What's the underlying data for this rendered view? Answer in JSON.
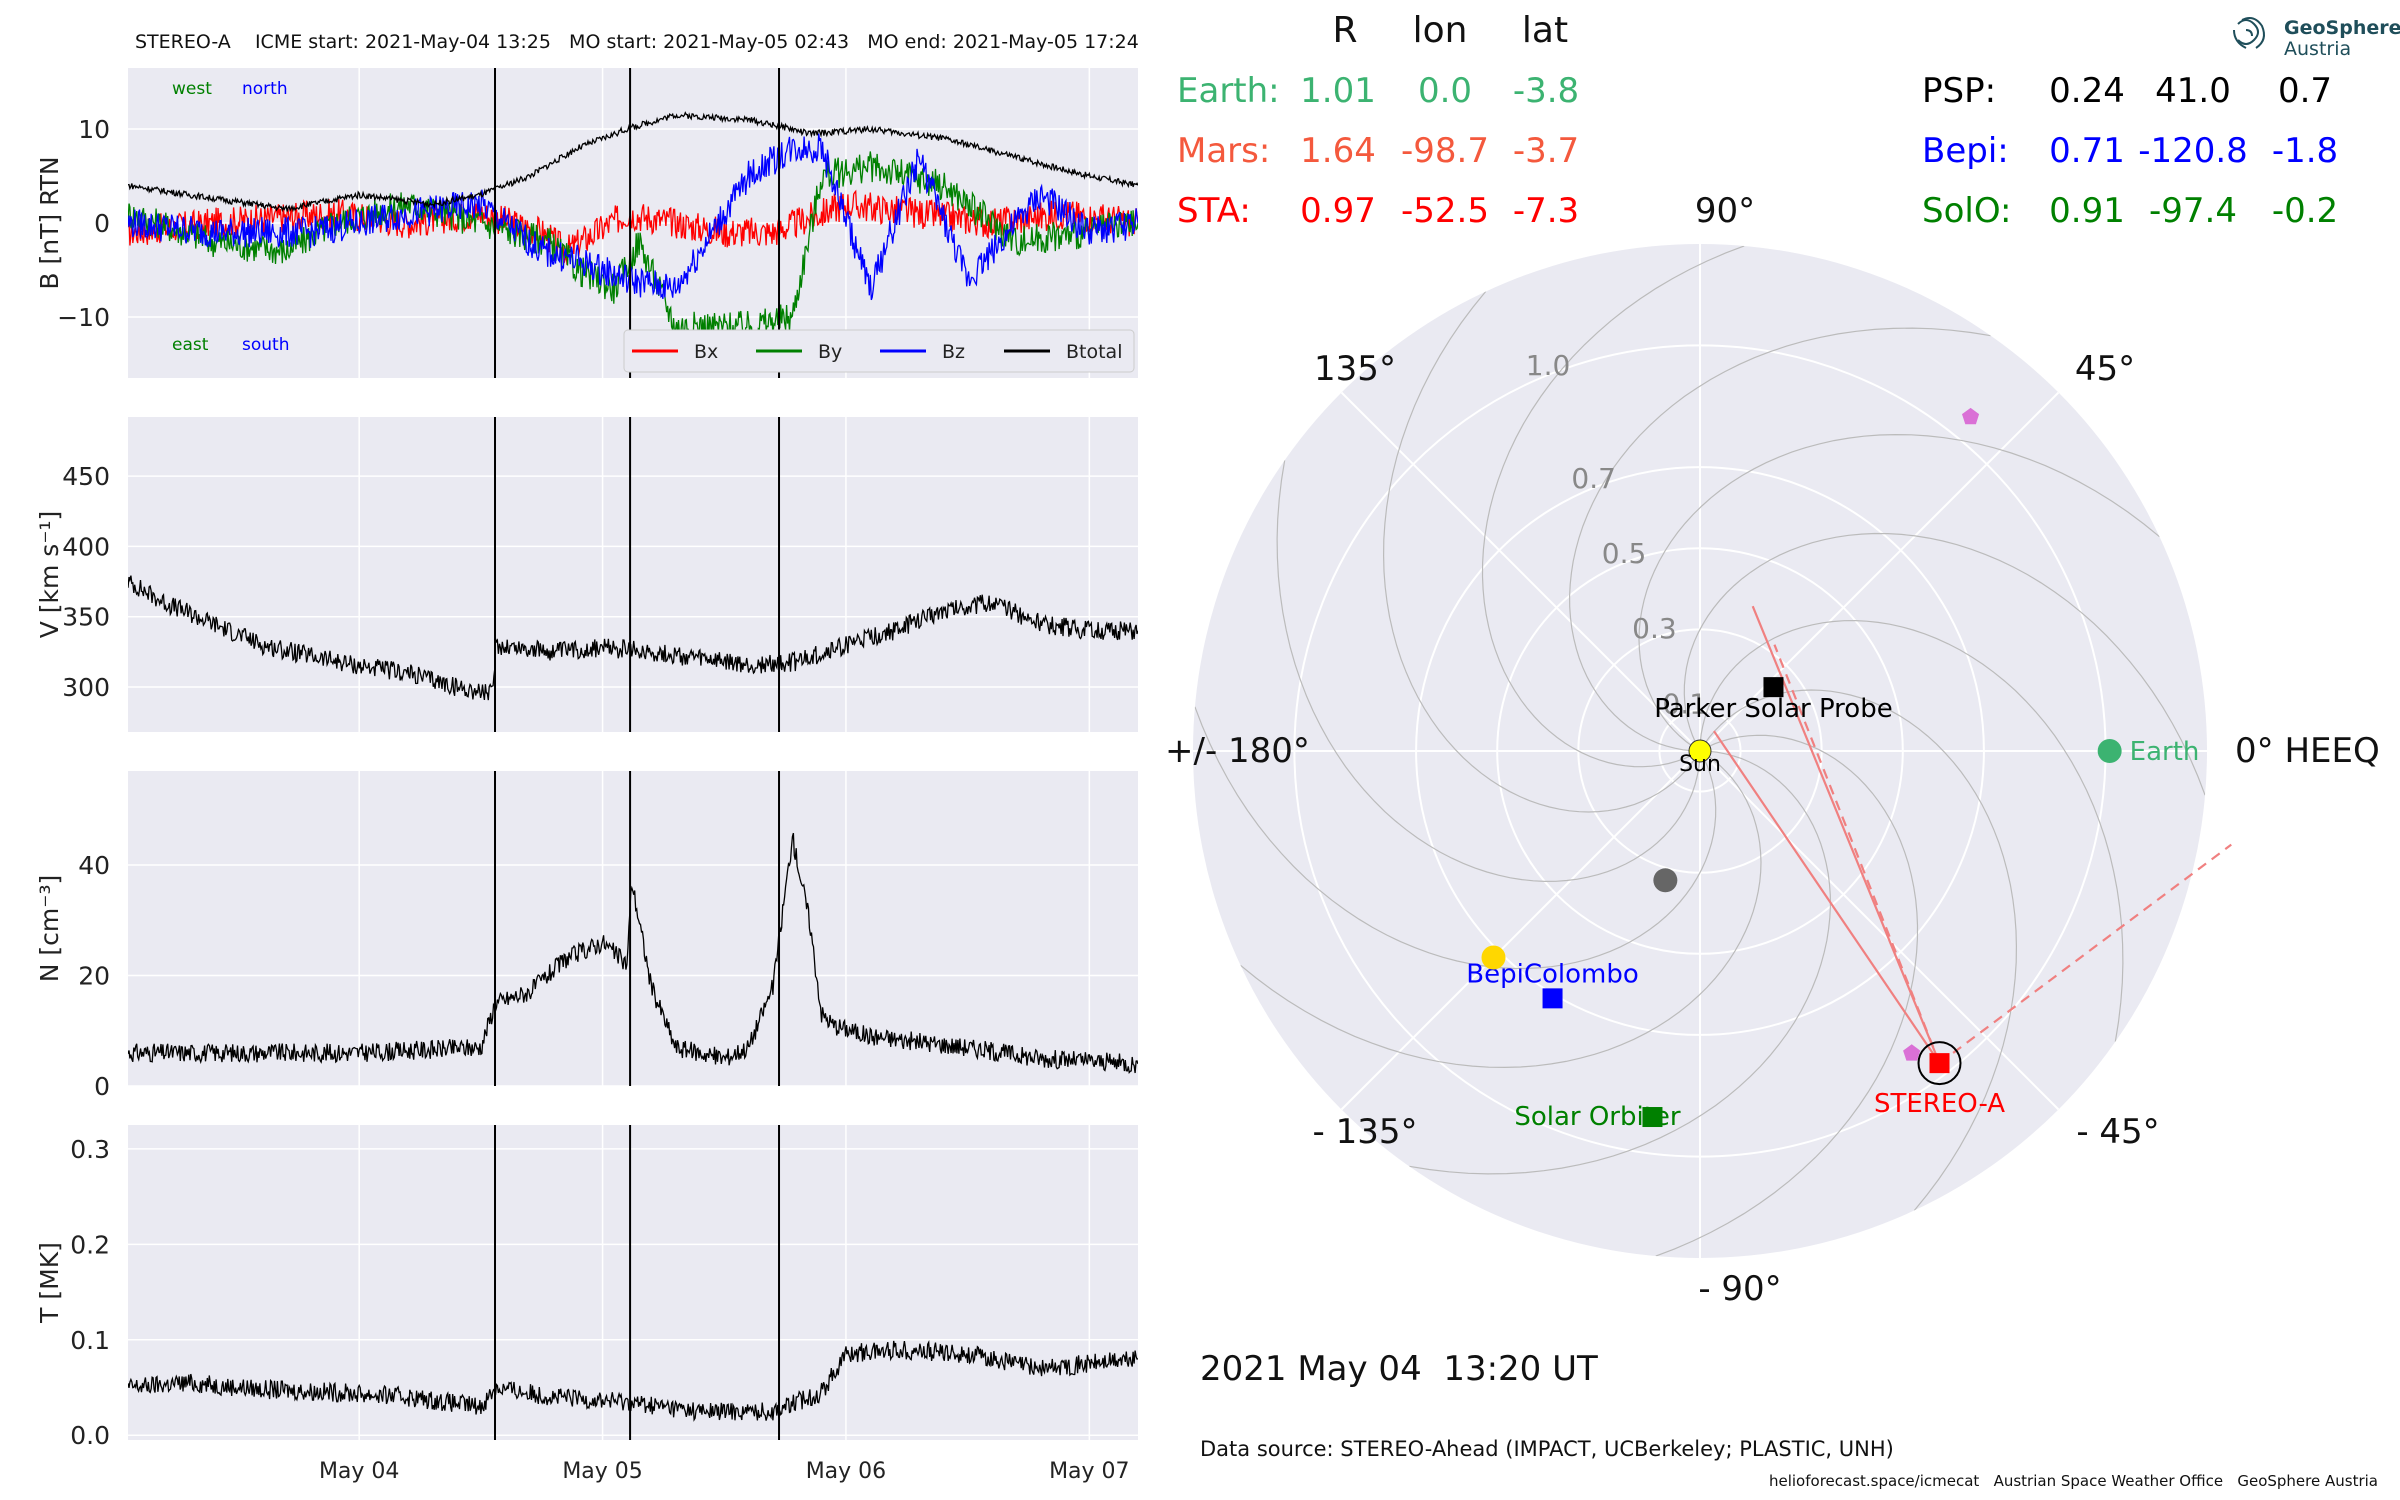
{
  "header": {
    "title": "STEREO-A    ICME start: 2021-May-04 13:25   MO start: 2021-May-05 02:43   MO end: 2021-May-05 17:24"
  },
  "chart_data": [
    {
      "type": "line",
      "panel": "magnetic-field",
      "ylabel": "B [nT] RTN",
      "ylim": [
        -16.5,
        16.5
      ],
      "yticks": [
        10,
        0,
        -10
      ],
      "ytick_labels": [
        "10",
        "0",
        "−10"
      ],
      "x_range_days": [
        0.05,
        4.2
      ],
      "annotations": {
        "west": "west",
        "north": "north",
        "east": "east",
        "south": "south"
      },
      "legend": [
        "Bx",
        "By",
        "Bz",
        "Btotal"
      ],
      "legend_position": "bottom-right",
      "series": [
        {
          "name": "Bx",
          "color": "#ff0000",
          "x": [
            0.05,
            0.4,
            0.9,
            1.2,
            1.5,
            1.75,
            1.85,
            2.1,
            2.3,
            2.5,
            2.7,
            3.0,
            3.3,
            3.6,
            3.9,
            4.2
          ],
          "y": [
            -1,
            0,
            1,
            0,
            1,
            -1,
            -3,
            1,
            0,
            -1,
            -1,
            2,
            1,
            0,
            1,
            0
          ]
        },
        {
          "name": "By",
          "color": "#008000",
          "x": [
            0.05,
            0.4,
            0.7,
            0.9,
            1.2,
            1.5,
            1.78,
            1.9,
            2.05,
            2.15,
            2.3,
            2.6,
            2.78,
            2.9,
            3.1,
            3.4,
            3.7,
            4.0,
            4.2
          ],
          "y": [
            1,
            -2,
            -3,
            0,
            2,
            0,
            -2,
            -5,
            -7,
            -2,
            -11,
            -11,
            -10,
            5,
            6,
            4,
            -2,
            -1,
            0
          ]
        },
        {
          "name": "Bz",
          "color": "#0000ff",
          "x": [
            0.05,
            0.4,
            0.8,
            1.2,
            1.5,
            1.75,
            1.9,
            2.1,
            2.3,
            2.6,
            2.78,
            2.9,
            3.1,
            3.3,
            3.5,
            3.8,
            4.0,
            4.2
          ],
          "y": [
            0,
            -1,
            -1,
            1,
            2,
            -3,
            -4,
            -6,
            -7,
            5,
            8,
            8,
            -7,
            7,
            -6,
            3,
            -1,
            0
          ]
        },
        {
          "name": "Btotal",
          "color": "#000000",
          "x": [
            0.05,
            0.3,
            0.7,
            1.0,
            1.3,
            1.5,
            1.7,
            1.9,
            2.1,
            2.3,
            2.6,
            2.78,
            2.85,
            3.1,
            3.4,
            3.7,
            4.0,
            4.2
          ],
          "y": [
            4,
            3,
            1.5,
            3,
            2,
            3,
            5,
            8,
            10,
            11.5,
            11,
            10,
            9.5,
            10,
            9,
            7,
            5,
            4
          ]
        }
      ],
      "vlines_days": [
        1.558,
        2.113,
        2.725
      ]
    },
    {
      "type": "line",
      "panel": "speed",
      "ylabel": "V [km s⁻¹]",
      "ylim": [
        268,
        492
      ],
      "yticks": [
        300,
        350,
        400,
        450
      ],
      "ytick_labels": [
        "300",
        "350",
        "400",
        "450"
      ],
      "x_range_days": [
        0.05,
        4.2
      ],
      "series": [
        {
          "name": "",
          "color": "#000000",
          "x": [
            0.05,
            0.2,
            0.4,
            0.6,
            0.8,
            1.0,
            1.2,
            1.4,
            1.55,
            1.56,
            1.8,
            2.0,
            2.2,
            2.4,
            2.6,
            2.8,
            3.0,
            3.2,
            3.4,
            3.6,
            3.8,
            4.0,
            4.2
          ],
          "y": [
            375,
            360,
            345,
            330,
            322,
            315,
            310,
            300,
            295,
            330,
            325,
            328,
            325,
            320,
            315,
            318,
            330,
            340,
            355,
            360,
            345,
            340,
            340
          ]
        }
      ],
      "vlines_days": [
        1.558,
        2.113,
        2.725
      ]
    },
    {
      "type": "line",
      "panel": "density",
      "ylabel": "N [cm⁻³]",
      "ylim": [
        0,
        57
      ],
      "yticks": [
        0,
        20,
        40
      ],
      "ytick_labels": [
        "0",
        "20",
        "40"
      ],
      "x_range_days": [
        0.05,
        4.2
      ],
      "series": [
        {
          "name": "",
          "color": "#000000",
          "x": [
            0.05,
            0.5,
            1.0,
            1.5,
            1.56,
            1.7,
            1.85,
            2.0,
            2.1,
            2.12,
            2.2,
            2.3,
            2.5,
            2.6,
            2.7,
            2.78,
            2.85,
            2.9,
            2.95,
            3.1,
            3.5,
            3.8,
            4.2
          ],
          "y": [
            6,
            6,
            6,
            7,
            15,
            17,
            23,
            26,
            22,
            37,
            18,
            7,
            5,
            7,
            18,
            45,
            30,
            13,
            11,
            9,
            7,
            5,
            4
          ]
        }
      ],
      "vlines_days": [
        1.558,
        2.113,
        2.725
      ]
    },
    {
      "type": "line",
      "panel": "temperature",
      "ylabel": "T [MK]",
      "ylim": [
        -0.005,
        0.325
      ],
      "yticks": [
        0.0,
        0.1,
        0.2,
        0.3
      ],
      "ytick_labels": [
        "0.0",
        "0.1",
        "0.2",
        "0.3"
      ],
      "x_range_days": [
        0.05,
        4.2
      ],
      "series": [
        {
          "name": "",
          "color": "#000000",
          "x": [
            0.05,
            0.3,
            0.6,
            0.9,
            1.2,
            1.5,
            1.56,
            1.8,
            2.1,
            2.4,
            2.7,
            2.9,
            3.0,
            3.2,
            3.5,
            3.8,
            4.0,
            4.2
          ],
          "y": [
            0.05,
            0.055,
            0.048,
            0.045,
            0.04,
            0.03,
            0.05,
            0.04,
            0.035,
            0.025,
            0.025,
            0.045,
            0.085,
            0.09,
            0.085,
            0.07,
            0.075,
            0.08
          ]
        }
      ],
      "vlines_days": [
        1.558,
        2.113,
        2.725
      ],
      "x_tick_days": [
        1.0,
        2.0,
        3.0,
        4.0
      ],
      "x_tick_labels": [
        "May 04",
        "May 05",
        "May 06",
        "May 07"
      ]
    },
    {
      "type": "scatter",
      "panel": "polar-positions",
      "projection": "polar",
      "angle_labels": [
        "90°",
        "45°",
        "0° HEEQ",
        "- 45°",
        "- 90°",
        "- 135°",
        "+/- 180°",
        "135°"
      ],
      "radial_ticks": [
        0.1,
        0.3,
        0.5,
        0.7,
        1.0
      ],
      "radial_tick_labels": [
        "0.1",
        "0.3",
        "0.5",
        "0.7",
        "1.0"
      ],
      "rmax": 1.25,
      "points": [
        {
          "label": "Sun",
          "r": 0.0,
          "lon": 0,
          "color": "#ffff00",
          "marker": "circle"
        },
        {
          "label": "Earth",
          "r": 1.01,
          "lon": 0.0,
          "color": "#3cb371",
          "marker": "circle"
        },
        {
          "label": "STEREO-A",
          "r": 0.97,
          "lon": -52.5,
          "color": "#ff0000",
          "marker": "square"
        },
        {
          "label": "Parker Solar Probe",
          "r": 0.24,
          "lon": 41.0,
          "color": "#000000",
          "marker": "square"
        },
        {
          "label": "BepiColombo",
          "r": 0.71,
          "lon": -120.8,
          "color": "#0000ff",
          "marker": "square"
        },
        {
          "label": "Solar Orbiter",
          "r": 0.91,
          "lon": -97.4,
          "color": "#008000",
          "marker": "square"
        },
        {
          "label": "",
          "r": 0.72,
          "lon": -135.0,
          "color": "#ffd700",
          "marker": "circle"
        },
        {
          "label": "",
          "r": 0.33,
          "lon": -105.0,
          "color": "#666666",
          "marker": "circle"
        },
        {
          "label": "",
          "r": 1.06,
          "lon": 51.0,
          "color": "#da70d6",
          "marker": "pentagon"
        },
        {
          "label": "",
          "r": 0.91,
          "lon": -55.0,
          "color": "#da70d6",
          "marker": "pentagon"
        }
      ],
      "lines": [
        {
          "from_r": 0.97,
          "from_lon": -52.5,
          "to_r": 0.06,
          "to_lon": 55,
          "color": "#f08080",
          "style": "solid"
        },
        {
          "from_r": 0.97,
          "from_lon": -52.5,
          "to_r": 0.38,
          "to_lon": 70,
          "color": "#f08080",
          "style": "solid"
        },
        {
          "from_r": 0.97,
          "from_lon": -52.5,
          "to_r": 0.32,
          "to_lon": 55,
          "color": "#f08080",
          "style": "dashed"
        },
        {
          "from_r": 0.97,
          "from_lon": -52.5,
          "to_r": 1.33,
          "to_lon": -10,
          "color": "#f08080",
          "style": "dashed"
        }
      ]
    }
  ],
  "positions_table": {
    "headers": [
      "R",
      "lon",
      "lat"
    ],
    "left": [
      {
        "name": "Earth:",
        "R": "1.01",
        "lon": "0.0",
        "lat": "-3.8",
        "color": "#3cb371"
      },
      {
        "name": "Mars:",
        "R": "1.64",
        "lon": "-98.7",
        "lat": "-3.7",
        "color": "#f4593d"
      },
      {
        "name": "STA:",
        "R": "0.97",
        "lon": "-52.5",
        "lat": "-7.3",
        "color": "#ff0000"
      }
    ],
    "right": [
      {
        "name": "PSP:",
        "R": "0.24",
        "lon": "41.0",
        "lat": "0.7",
        "color": "#000000"
      },
      {
        "name": "Bepi:",
        "R": "0.71",
        "lon": "-120.8",
        "lat": "-1.8",
        "color": "#0000ff"
      },
      {
        "name": "SolO:",
        "R": "0.91",
        "lon": "-97.4",
        "lat": "-0.2",
        "color": "#008000"
      }
    ]
  },
  "logo": {
    "line1": "GeoSphere",
    "line2": "Austria"
  },
  "footer": {
    "timestamp": "2021 May 04  13:20 UT",
    "data_source": "Data source: STEREO-Ahead (IMPACT, UCBerkeley; PLASTIC, UNH)",
    "credit": "helioforecast.space/icmecat   Austrian Space Weather Office   GeoSphere Austria"
  },
  "colors": {
    "panel_bg": "#eaeaf2",
    "grid": "#ffffff"
  }
}
